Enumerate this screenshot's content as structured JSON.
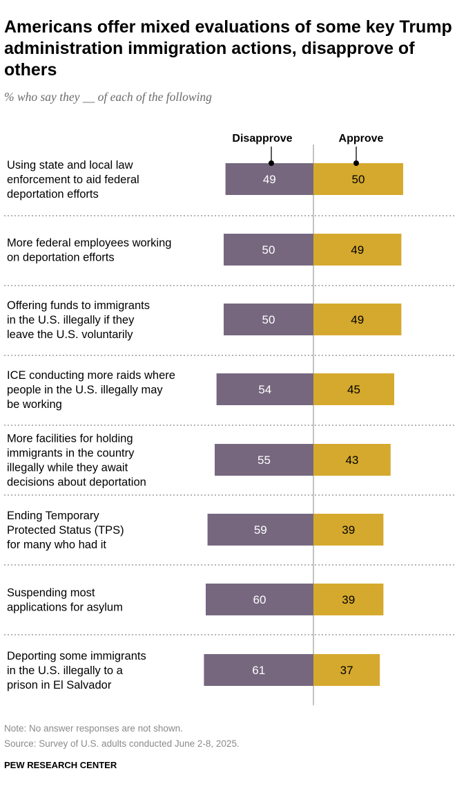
{
  "colors": {
    "disapprove": "#76677f",
    "approve": "#d5a92d",
    "divider": "#9a9a9a",
    "axis": "#999999"
  },
  "chart_data": {
    "type": "bar",
    "orientation": "diverging-horizontal",
    "title_lines": [
      "Americans offer mixed evaluations of some key Trump",
      "administration immigration actions, disapprove of",
      "others"
    ],
    "subtitle": "% who say they __ of each of the following",
    "legend": [
      "Disapprove",
      "Approve"
    ],
    "categories": [
      [
        "Using state and local law",
        "enforcement to aid federal",
        "deportation efforts"
      ],
      [
        "More federal employees working",
        "on deportation efforts"
      ],
      [
        "Offering funds to immigrants",
        "in the U.S. illegally if they",
        "leave the U.S. voluntarily"
      ],
      [
        "ICE conducting more raids where",
        "people in the U.S. illegally may",
        "be working"
      ],
      [
        "More facilities for holding",
        "immigrants in the country",
        "illegally while they await",
        "decisions about deportation"
      ],
      [
        "Ending Temporary",
        "Protected Status (TPS)",
        "for many who had it"
      ],
      [
        "Suspending most",
        "applications for asylum"
      ],
      [
        "Deporting some immigrants",
        "in the U.S. illegally to a",
        "prison in El Salvador"
      ]
    ],
    "series": [
      {
        "name": "Disapprove",
        "values": [
          49,
          50,
          50,
          54,
          55,
          59,
          60,
          61
        ]
      },
      {
        "name": "Approve",
        "values": [
          50,
          49,
          49,
          45,
          43,
          39,
          39,
          37
        ]
      }
    ],
    "xlim": [
      0,
      100
    ]
  },
  "footer": {
    "note": "Note: No answer responses are not shown.",
    "source": "Source: Survey of U.S. adults conducted June 2-8, 2025.",
    "credit": "PEW RESEARCH CENTER"
  }
}
